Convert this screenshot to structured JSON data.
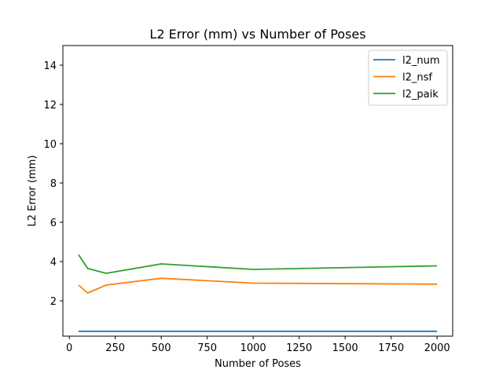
{
  "chart_data": {
    "type": "line",
    "title": "L2 Error (mm) vs Number of Poses",
    "xlabel": "Number of Poses",
    "ylabel": "L2 Error (mm)",
    "x": [
      50,
      100,
      200,
      500,
      1000,
      2000
    ],
    "xlim": [
      -35,
      2085
    ],
    "ylim": [
      0.2,
      15
    ],
    "xticks": [
      0,
      250,
      500,
      750,
      1000,
      1250,
      1500,
      1750,
      2000
    ],
    "yticks": [
      2,
      4,
      6,
      8,
      10,
      12,
      14
    ],
    "grid": false,
    "legend_position": "top-right",
    "series": [
      {
        "name": "l2_num",
        "color": "#1f77b4",
        "values": [
          0.45,
          0.45,
          0.45,
          0.45,
          0.45,
          0.45
        ]
      },
      {
        "name": "l2_nsf",
        "color": "#ff7f0e",
        "values": [
          2.8,
          2.4,
          2.8,
          3.15,
          2.9,
          2.85
        ]
      },
      {
        "name": "l2_paik",
        "color": "#2ca02c",
        "values": [
          4.35,
          3.65,
          3.4,
          3.88,
          3.6,
          3.78
        ]
      }
    ]
  }
}
